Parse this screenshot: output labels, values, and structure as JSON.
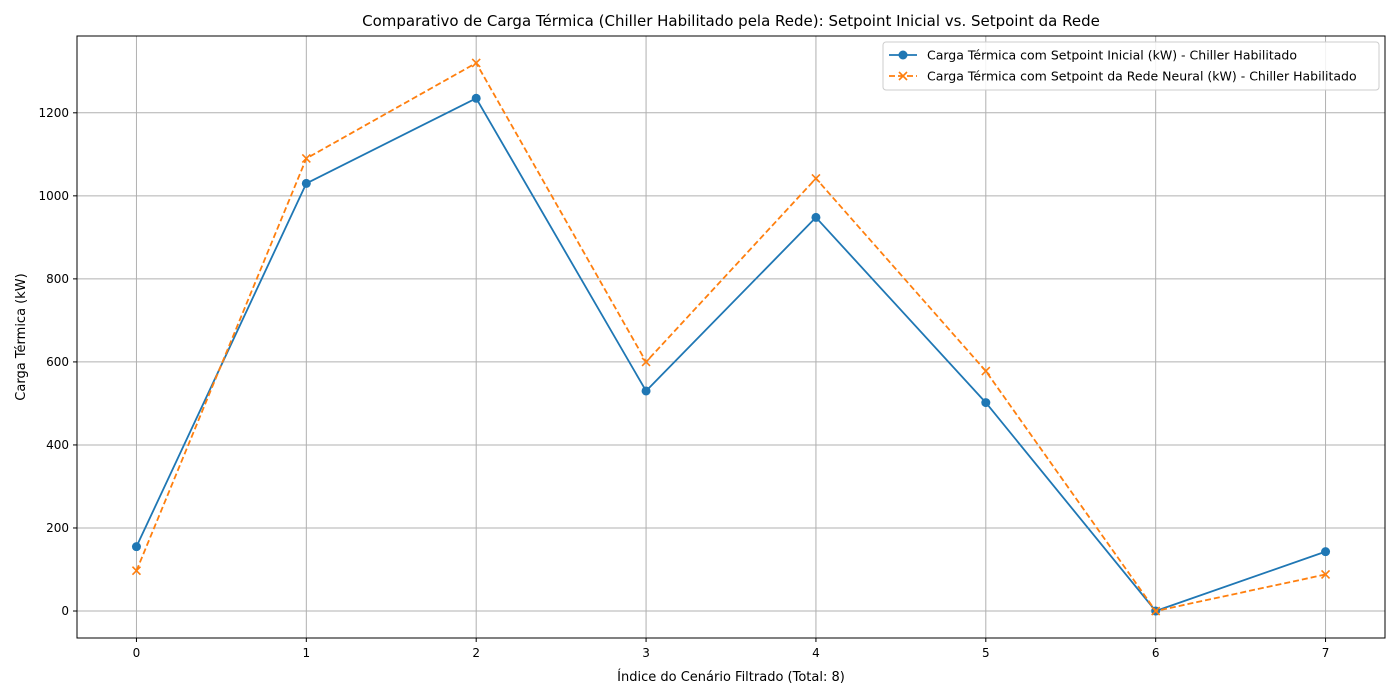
{
  "chart_data": {
    "type": "line",
    "title": "Comparativo de Carga Térmica (Chiller Habilitado pela Rede): Setpoint Inicial vs. Setpoint da Rede",
    "xlabel": "Índice do Cenário Filtrado (Total: 8)",
    "ylabel": "Carga Térmica (kW)",
    "x": [
      0,
      1,
      2,
      3,
      4,
      5,
      6,
      7
    ],
    "x_ticks": [
      "0",
      "1",
      "2",
      "3",
      "4",
      "5",
      "6",
      "7"
    ],
    "y_ticks": [
      "0",
      "200",
      "400",
      "600",
      "800",
      "1000",
      "1200"
    ],
    "xlim": [
      -0.35,
      7.35
    ],
    "ylim": [
      -65,
      1385
    ],
    "grid": true,
    "legend_position": "top-right",
    "series": [
      {
        "name": "Carga Térmica com Setpoint Inicial (kW) - Chiller Habilitado",
        "values": [
          155,
          1030,
          1235,
          530,
          948,
          502,
          0,
          143
        ],
        "color": "#1f77b4",
        "line_style": "solid",
        "marker": "circle"
      },
      {
        "name": "Carga Térmica com Setpoint da Rede Neural (kW) - Chiller Habilitado",
        "values": [
          97,
          1090,
          1320,
          600,
          1042,
          578,
          0,
          88
        ],
        "color": "#ff7f0e",
        "line_style": "dashed",
        "marker": "x"
      }
    ]
  }
}
